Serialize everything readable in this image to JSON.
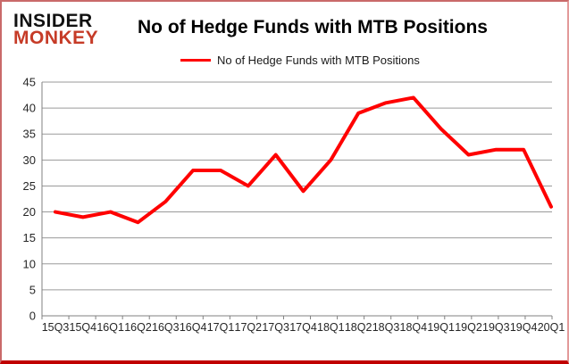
{
  "logo": {
    "line1": "INSIDER",
    "line2": "MONKEY"
  },
  "header": {
    "title": "No of Hedge Funds with MTB Positions"
  },
  "legend": {
    "label": "No of Hedge Funds with MTB Positions"
  },
  "colors": {
    "series": "#ff0000",
    "logo_black": "#111111",
    "logo_red": "#c63b27",
    "gridline": "#9a9a9a",
    "axis": "#808080",
    "axis_text": "#262626"
  },
  "chart_data": {
    "type": "line",
    "title": "No of Hedge Funds with MTB Positions",
    "categories": [
      "15Q3",
      "15Q4",
      "16Q1",
      "16Q2",
      "16Q3",
      "16Q4",
      "17Q1",
      "17Q2",
      "17Q3",
      "17Q4",
      "18Q1",
      "18Q2",
      "18Q3",
      "18Q4",
      "19Q1",
      "19Q2",
      "19Q3",
      "19Q4",
      "20Q1"
    ],
    "series": [
      {
        "name": "No of Hedge Funds with MTB Positions",
        "values": [
          20,
          19,
          20,
          18,
          22,
          28,
          28,
          25,
          31,
          24,
          30,
          39,
          41,
          42,
          36,
          31,
          32,
          32,
          21
        ]
      }
    ],
    "xlabel": "",
    "ylabel": "",
    "ylim": [
      0,
      45
    ],
    "y_ticks": [
      0,
      5,
      10,
      15,
      20,
      25,
      30,
      35,
      40,
      45
    ],
    "grid": true,
    "legend_position": "top"
  }
}
